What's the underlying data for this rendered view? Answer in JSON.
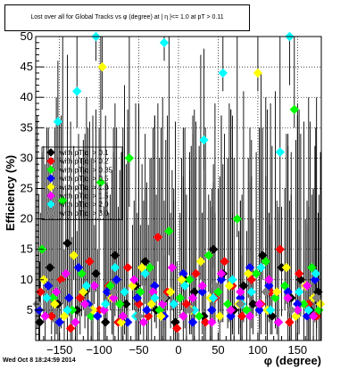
{
  "title": "Lost over all for Global Tracks vs φ (degree) at | η |<= 1.0 at pT > 0.11",
  "timestamp": "Wed Oct  8 18:24:59 2014",
  "colors": {
    "frame": "#000000",
    "grid": "#000000",
    "background": "#ffffff"
  },
  "chart_data": {
    "type": "scatter",
    "title": "Lost over all for Global Tracks vs φ (degree) at | η |<= 1.0 at pT > 0.11",
    "xlabel": "φ (degree)",
    "ylabel": "Efficiency (%)",
    "xlim": [
      -180,
      180
    ],
    "ylim": [
      0,
      50
    ],
    "x_ticks": [
      -150,
      -100,
      -50,
      0,
      50,
      100,
      150
    ],
    "y_ticks": [
      5,
      10,
      15,
      20,
      25,
      30,
      35,
      40,
      45,
      50
    ],
    "grid": true,
    "legend_position": "left-middle",
    "marker": "diamond",
    "series": [
      {
        "name": "with pT|q| > 0.1",
        "color": "#000000",
        "x": [
          -175,
          -162,
          -152,
          -140,
          -128,
          -118,
          -104,
          -92,
          -80,
          -66,
          -54,
          -42,
          -28,
          -16,
          -4,
          8,
          20,
          32,
          44,
          56,
          70,
          82,
          94,
          106,
          118,
          130,
          142,
          154,
          166,
          176
        ],
        "y": [
          3,
          12,
          6,
          16,
          5,
          8,
          11,
          3,
          14,
          6,
          9,
          13,
          5,
          7,
          3,
          10,
          8,
          4,
          15,
          11,
          5,
          9,
          6,
          14,
          4,
          12,
          7,
          10,
          5,
          8
        ]
      },
      {
        "name": "with pT|q| > 0.2",
        "color": "#ff0000",
        "x": [
          -174,
          -160,
          -148,
          -136,
          -124,
          -112,
          -100,
          -88,
          -76,
          -64,
          -50,
          -38,
          -26,
          -14,
          -2,
          10,
          22,
          34,
          46,
          58,
          68,
          80,
          92,
          104,
          116,
          128,
          140,
          152,
          164,
          174
        ],
        "y": [
          8,
          4,
          10,
          2,
          7,
          13,
          5,
          9,
          3,
          12,
          6,
          4,
          17,
          8,
          2,
          6,
          11,
          3,
          7,
          13,
          9,
          4,
          10,
          6,
          8,
          15,
          3,
          11,
          6,
          4
        ]
      },
      {
        "name": "with pT|q| > 0.35",
        "color": "#00ff00",
        "x": [
          -172,
          -158,
          -146,
          -134,
          -122,
          -110,
          -98,
          -86,
          -74,
          -62,
          -48,
          -36,
          -24,
          -12,
          2,
          14,
          26,
          38,
          50,
          62,
          74,
          86,
          98,
          110,
          122,
          134,
          146,
          158,
          168,
          177
        ],
        "y": [
          15,
          7,
          23,
          5,
          11,
          4,
          26,
          9,
          6,
          30,
          8,
          12,
          5,
          18,
          7,
          10,
          4,
          14,
          8,
          6,
          20,
          5,
          11,
          13,
          7,
          9,
          38,
          6,
          12,
          5
        ]
      },
      {
        "name": "with pT|q| > 0.5",
        "color": "#0000ff",
        "x": [
          -176,
          -164,
          -150,
          -138,
          -126,
          -114,
          -102,
          -90,
          -78,
          -64,
          -52,
          -40,
          -30,
          -18,
          -6,
          6,
          18,
          30,
          42,
          54,
          66,
          78,
          90,
          102,
          114,
          126,
          138,
          150,
          162,
          172
        ],
        "y": [
          5,
          9,
          3,
          7,
          12,
          6,
          4,
          8,
          10,
          3,
          7,
          5,
          9,
          4,
          6,
          11,
          3,
          8,
          5,
          10,
          4,
          7,
          12,
          5,
          9,
          3,
          8,
          6,
          4,
          10
        ]
      },
      {
        "name": "with pT|q| > 1.0",
        "color": "#ffff00",
        "x": [
          -170,
          -156,
          -144,
          -132,
          -120,
          -108,
          -96,
          -84,
          -72,
          -58,
          -46,
          -34,
          -22,
          -10,
          4,
          16,
          28,
          40,
          52,
          64,
          76,
          88,
          100,
          112,
          124,
          136,
          148,
          160,
          170,
          179
        ],
        "y": [
          10,
          6,
          4,
          14,
          8,
          5,
          45,
          7,
          3,
          9,
          12,
          6,
          4,
          8,
          10,
          5,
          13,
          7,
          4,
          9,
          6,
          11,
          44,
          5,
          8,
          12,
          4,
          9,
          7,
          6
        ]
      },
      {
        "name": "with pT|q| > 1.5",
        "color": "#ff00ff",
        "x": [
          -168,
          -154,
          -142,
          -130,
          -118,
          -106,
          -94,
          -82,
          -70,
          -56,
          -44,
          -32,
          -20,
          -8,
          6,
          18,
          30,
          42,
          54,
          66,
          78,
          90,
          102,
          114,
          126,
          138,
          150,
          162,
          170
        ],
        "y": [
          4,
          8,
          11,
          3,
          6,
          9,
          5,
          7,
          4,
          10,
          3,
          8,
          6,
          12,
          4,
          7,
          9,
          3,
          11,
          5,
          8,
          4,
          6,
          10,
          3,
          7,
          5,
          9,
          4
        ]
      },
      {
        "name": "with pT|q| > 2.0",
        "color": "#00ffff",
        "x": [
          -166,
          -152,
          -140,
          -128,
          -116,
          -104,
          -92,
          -80,
          -68,
          -54,
          -42,
          -30,
          -18,
          -6,
          8,
          20,
          32,
          44,
          56,
          68,
          80,
          92,
          104,
          116,
          128,
          140,
          152,
          164,
          173
        ],
        "y": [
          7,
          36,
          5,
          41,
          9,
          50,
          6,
          12,
          8,
          4,
          11,
          7,
          49,
          6,
          9,
          5,
          33,
          7,
          44,
          10,
          6,
          8,
          12,
          5,
          31,
          50,
          8,
          5,
          11
        ]
      },
      {
        "name": "with pT|q| > 3.0",
        "color": "#808080",
        "x": [
          -178,
          -146,
          -114,
          -82,
          -50,
          -18,
          14,
          46,
          78,
          110,
          142,
          174
        ],
        "y": [
          6,
          9,
          5,
          8,
          4,
          7,
          5,
          9,
          6,
          8,
          5,
          7
        ]
      }
    ]
  }
}
